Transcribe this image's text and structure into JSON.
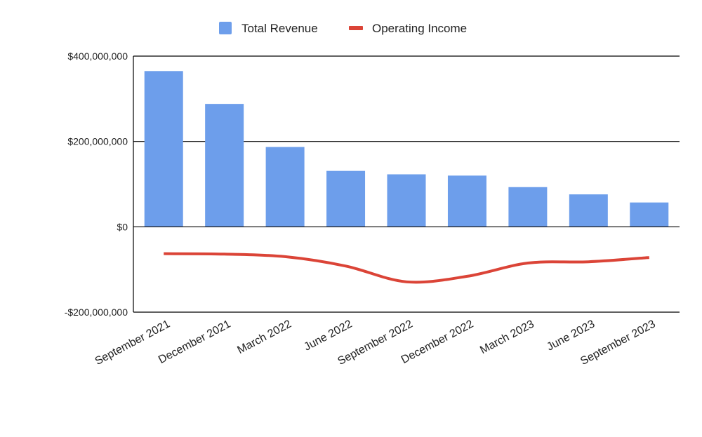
{
  "chart_data": {
    "type": "bar",
    "title": "",
    "xlabel": "",
    "ylabel": "",
    "categories": [
      "September 2021",
      "December 2021",
      "March 2022",
      "June 2022",
      "September 2022",
      "December 2022",
      "March 2023",
      "June 2023",
      "September 2023"
    ],
    "series": [
      {
        "name": "Total Revenue",
        "type": "bar",
        "color": "#6d9eeb",
        "values": [
          365000000,
          288000000,
          187000000,
          131000000,
          123000000,
          120000000,
          93000000,
          76000000,
          57000000
        ]
      },
      {
        "name": "Operating Income",
        "type": "line",
        "color": "#db4437",
        "values": [
          -63000000,
          -64000000,
          -70000000,
          -92000000,
          -129000000,
          -116000000,
          -85000000,
          -82000000,
          -72000000
        ]
      }
    ],
    "ylim": [
      -200000000,
      400000000
    ],
    "y_ticks": [
      {
        "value": 400000000,
        "label": "$400,000,000"
      },
      {
        "value": 200000000,
        "label": "$200,000,000"
      },
      {
        "value": 0,
        "label": "$0"
      },
      {
        "value": -200000000,
        "label": "-$200,000,000"
      }
    ],
    "grid": true,
    "legend_position": "top-center"
  }
}
